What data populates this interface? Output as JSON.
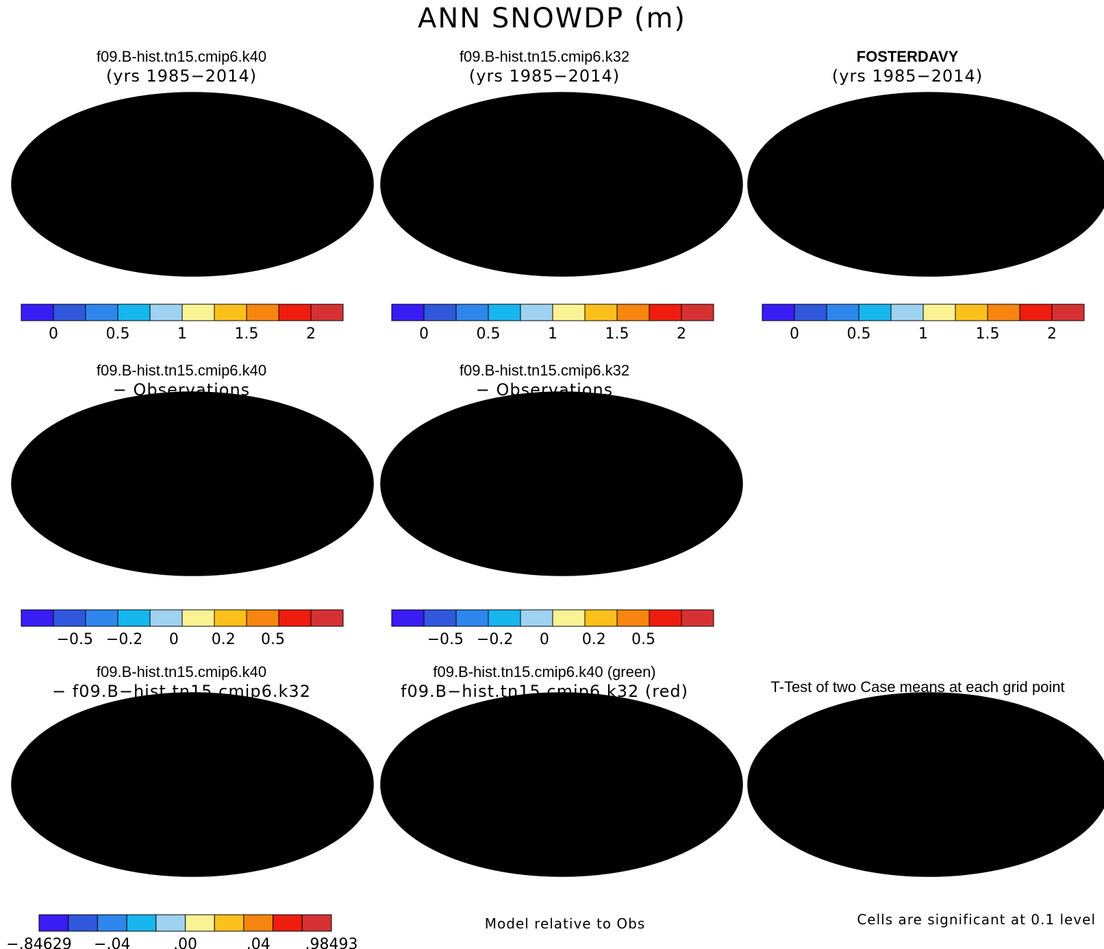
{
  "main_title": "ANN SNOWDP (m)",
  "panels": [
    {
      "line1": "f09.B-hist.tn15.cmip6.k40",
      "line2": "(yrs 1985−2014)",
      "bold1": false
    },
    {
      "line1": "f09.B-hist.tn15.cmip6.k32",
      "line2": "(yrs 1985−2014)",
      "bold1": false
    },
    {
      "line1": "FOSTERDAVY",
      "line2": "(yrs 1985−2014)",
      "bold1": true
    },
    {
      "line1": "f09.B-hist.tn15.cmip6.k40",
      "line2": "− Observations",
      "bold1": false
    },
    {
      "line1": "f09.B-hist.tn15.cmip6.k32",
      "line2": "− Observations",
      "bold1": false
    },
    {
      "line1": "f09.B-hist.tn15.cmip6.k40",
      "line2": "− f09.B−hist.tn15.cmip6.k32",
      "bold1": false
    },
    {
      "line1": "f09.B-hist.tn15.cmip6.k40 (green)",
      "line2": "f09.B−hist.tn15.cmip6.k32 (red)",
      "bold1": false
    },
    {
      "line1": "T-Test of two Case means at each grid point",
      "line2": "",
      "bold1": false
    }
  ],
  "colorbars": {
    "colors": [
      "#3a1cf5",
      "#2f58dc",
      "#2e87ec",
      "#17b6ef",
      "#9fd2f0",
      "#fbf294",
      "#fbc01b",
      "#f7850f",
      "#ee1d10",
      "#d63234"
    ],
    "absolute_labels": [
      "0",
      "0.5",
      "1",
      "1.5",
      "2"
    ],
    "diff_labels": [
      "−0.5",
      "−0.2",
      "0",
      "0.2",
      "0.5"
    ],
    "case_diff_labels": [
      "−.84629",
      "−.04",
      ".00",
      ".04",
      ".98493"
    ]
  },
  "footer": {
    "model_relative": "Model relative to Obs",
    "significance": "Cells are significant at 0.1 level"
  },
  "map_colors": {
    "land_blue": "#2f58dc",
    "land_light": "#9fd2f0",
    "land_yellow": "#fbf294",
    "snow_orange": "#f7850f",
    "snow_red": "#d63234",
    "sig_red": "#ee1d10",
    "sig_green": "#22dd22"
  }
}
